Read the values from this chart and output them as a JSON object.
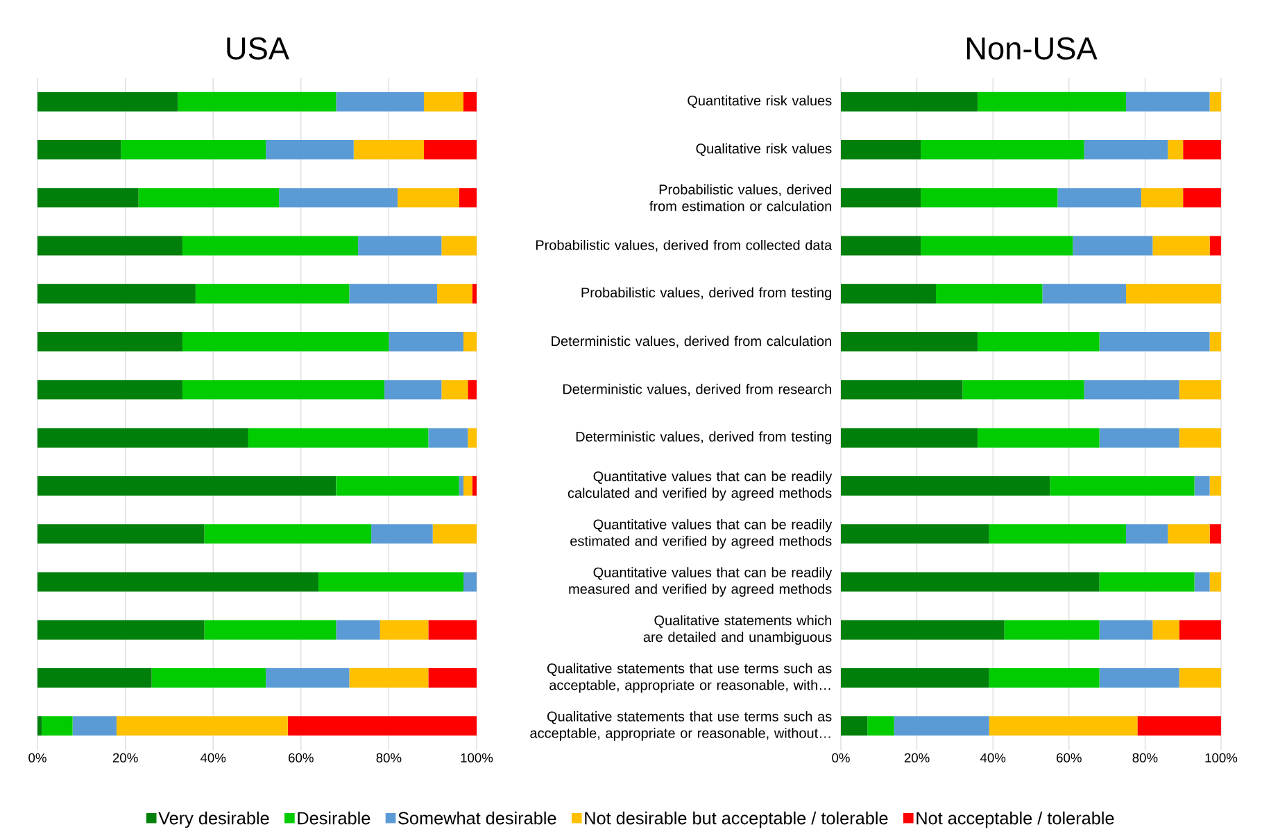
{
  "chart_data": [
    {
      "type": "bar",
      "orientation": "horizontal",
      "stacked": true,
      "title": "USA",
      "tick_labels": "x",
      "grid": "x",
      "categories": [
        null,
        null,
        null,
        null,
        null,
        null,
        null,
        null,
        null,
        null,
        null,
        null,
        null,
        null
      ],
      "xlim": [
        0,
        100
      ],
      "xticks": [
        {
          "value": 0,
          "label": "0%"
        },
        {
          "value": 20,
          "label": "20%"
        },
        {
          "value": 40,
          "label": "40%"
        },
        {
          "value": 60,
          "label": "60%"
        },
        {
          "value": 80,
          "label": "80%"
        },
        {
          "value": 100,
          "label": "100%"
        }
      ],
      "series": [
        {
          "color": "#00800a",
          "values": [
            32,
            19,
            23,
            33,
            36,
            33,
            33,
            48,
            68,
            38,
            64,
            38,
            26,
            1
          ]
        },
        {
          "color": "#00cc00",
          "values": [
            36,
            33,
            32,
            40,
            35,
            47,
            46,
            41,
            28,
            38,
            33,
            30,
            26,
            7
          ]
        },
        {
          "color": "#5b9bd5",
          "values": [
            20,
            20,
            27,
            19,
            20,
            17,
            13,
            9,
            1,
            14,
            3,
            10,
            19,
            10
          ]
        },
        {
          "color": "#ffc000",
          "values": [
            9,
            16,
            14,
            8,
            8,
            3,
            6,
            2,
            2,
            10,
            0,
            11,
            18,
            39
          ]
        },
        {
          "color": "#ff0000",
          "values": [
            3,
            12,
            4,
            0,
            1,
            0,
            2,
            0,
            1,
            0,
            0,
            11,
            11,
            43
          ]
        }
      ]
    },
    {
      "type": "bar",
      "orientation": "horizontal",
      "stacked": true,
      "title": "Non-USA",
      "grid": "x",
      "legend": "bottom",
      "categories": [
        "Quantitative risk values",
        "Qualitative risk values",
        "Probabilistic values, derived from estimation or calculation",
        "Probabilistic values, derived from collected data",
        "Probabilistic values, derived from testing",
        "Deterministic values, derived from calculation",
        "Deterministic values, derived from research",
        "Deterministic values, derived from testing",
        "Quantitative values that can be readily calculated and verified by agreed methods",
        "Quantitative values that can be readily estimated and verified by agreed methods",
        "Quantitative values that can be readily measured and verified by agreed methods",
        "Qualitative statements which are detailed and unambiguous",
        "Qualitative statements that use terms such as acceptable, appropriate or reasonable, with…",
        "Qualitative statements that use terms such as acceptable, appropriate or reasonable, without…"
      ],
      "xlim": [
        0,
        100
      ],
      "xticks": [
        {
          "value": 0,
          "label": "0%"
        },
        {
          "value": 20,
          "label": "20%"
        },
        {
          "value": 40,
          "label": "40%"
        },
        {
          "value": 60,
          "label": "60%"
        },
        {
          "value": 80,
          "label": "80%"
        },
        {
          "value": 100,
          "label": "100%"
        }
      ],
      "series": [
        {
          "name": "Very desirable",
          "color": "#00800a",
          "values": [
            36,
            21,
            21,
            21,
            25,
            36,
            32,
            36,
            55,
            39,
            68,
            43,
            39,
            7
          ]
        },
        {
          "name": "Desirable",
          "color": "#00cc00",
          "values": [
            39,
            43,
            36,
            40,
            28,
            32,
            32,
            32,
            38,
            36,
            25,
            25,
            29,
            7
          ]
        },
        {
          "name": "Somewhat desirable",
          "color": "#5b9bd5",
          "values": [
            22,
            22,
            22,
            21,
            22,
            29,
            25,
            21,
            4,
            11,
            4,
            14,
            21,
            25
          ]
        },
        {
          "name": "Not desirable but acceptable / tolerable",
          "color": "#ffc000",
          "values": [
            3,
            4,
            11,
            15,
            25,
            3,
            11,
            11,
            3,
            11,
            3,
            7,
            11,
            39
          ]
        },
        {
          "name": "Not acceptable / tolerable",
          "color": "#ff0000",
          "values": [
            0,
            10,
            10,
            3,
            0,
            0,
            0,
            0,
            0,
            3,
            0,
            11,
            0,
            22
          ]
        }
      ]
    }
  ]
}
